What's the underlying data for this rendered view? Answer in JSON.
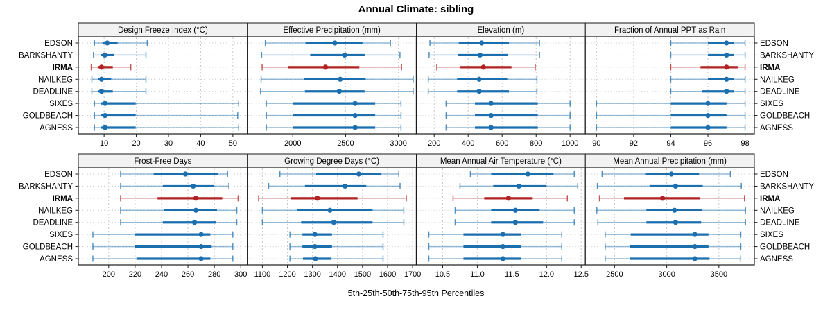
{
  "chart_data": {
    "type": "dotplot",
    "title": "Annual Climate: sibling",
    "caption": "5th-25th-50th-75th-95th Percentiles",
    "percentiles": [
      5,
      25,
      50,
      75,
      95
    ],
    "sites": [
      "EDSON",
      "BARKSHANTY",
      "IRMA",
      "NAILKEG",
      "DEADLINE",
      "SIXES",
      "GOLDBEACH",
      "AGNESS"
    ],
    "highlight_site": "IRMA",
    "colors": {
      "series": "#1B6FAF",
      "highlight": "#B22222",
      "grid": "#C8C8C8",
      "strip_fill": "#F2F2F2",
      "border": "#1A1A1A",
      "text": "#000000"
    },
    "legend_position": "none",
    "grid": "dashed vertical at ticks, dotted horizontal per row",
    "panels": [
      {
        "title": "Design Freeze Index (°C)",
        "xlim": [
          2,
          54.5
        ],
        "ticks": [
          10,
          20,
          30,
          40,
          50
        ],
        "tick_labels": [
          "10",
          "20",
          "30",
          "40",
          "50"
        ],
        "series": [
          {
            "site": "EDSON",
            "values": [
              7.0,
              9.5,
              11.0,
              14.2,
              23.4
            ]
          },
          {
            "site": "BARKSHANTY",
            "values": [
              6.7,
              9.0,
              10.2,
              13.0,
              23.0
            ]
          },
          {
            "site": "IRMA",
            "values": [
              6.0,
              8.0,
              9.2,
              12.7,
              18.3
            ]
          },
          {
            "site": "NAILKEG",
            "values": [
              6.2,
              8.2,
              9.2,
              12.2,
              23.0
            ]
          },
          {
            "site": "DEADLINE",
            "values": [
              6.2,
              8.2,
              9.2,
              12.7,
              23.0
            ]
          },
          {
            "site": "SIXES",
            "values": [
              7.0,
              9.0,
              10.3,
              19.8,
              51.8
            ]
          },
          {
            "site": "GOLDBEACH",
            "values": [
              7.0,
              9.0,
              10.3,
              19.8,
              51.5
            ]
          },
          {
            "site": "AGNESS",
            "values": [
              7.0,
              9.0,
              10.3,
              19.8,
              51.8
            ]
          }
        ]
      },
      {
        "title": "Effective Precipitation (mm)",
        "xlim": [
          1570,
          3170
        ],
        "ticks": [
          2000,
          2500,
          3000
        ],
        "tick_labels": [
          "2000",
          "2500",
          "3000"
        ],
        "series": [
          {
            "site": "EDSON",
            "values": [
              1740,
              2120,
              2400,
              2660,
              2925
            ]
          },
          {
            "site": "BARKSHANTY",
            "values": [
              1705,
              2165,
              2490,
              2685,
              3015
            ]
          },
          {
            "site": "IRMA",
            "values": [
              1710,
              1955,
              2310,
              2630,
              3030
            ]
          },
          {
            "site": "NAILKEG",
            "values": [
              1700,
              2110,
              2450,
              2690,
              3140
            ]
          },
          {
            "site": "DEADLINE",
            "values": [
              1695,
              2115,
              2440,
              2680,
              3140
            ]
          },
          {
            "site": "SIXES",
            "values": [
              1750,
              2000,
              2590,
              2780,
              3025
            ]
          },
          {
            "site": "GOLDBEACH",
            "values": [
              1750,
              2000,
              2590,
              2780,
              3025
            ]
          },
          {
            "site": "AGNESS",
            "values": [
              1750,
              2000,
              2590,
              2780,
              3025
            ]
          }
        ]
      },
      {
        "title": "Elevation (m)",
        "xlim": [
          95,
          1090
        ],
        "ticks": [
          200,
          400,
          600,
          800,
          1000
        ],
        "tick_labels": [
          "200",
          "400",
          "600",
          "800",
          "1000"
        ],
        "series": [
          {
            "site": "EDSON",
            "values": [
              175,
              345,
              480,
              640,
              820
            ]
          },
          {
            "site": "BARKSHANTY",
            "values": [
              170,
              340,
              470,
              635,
              820
            ]
          },
          {
            "site": "IRMA",
            "values": [
              215,
              350,
              490,
              655,
              795
            ]
          },
          {
            "site": "NAILKEG",
            "values": [
              165,
              335,
              465,
              630,
              805
            ]
          },
          {
            "site": "DEADLINE",
            "values": [
              165,
              335,
              465,
              640,
              805
            ]
          },
          {
            "site": "SIXES",
            "values": [
              270,
              440,
              535,
              810,
              1000
            ]
          },
          {
            "site": "GOLDBEACH",
            "values": [
              270,
              440,
              535,
              810,
              1000
            ]
          },
          {
            "site": "AGNESS",
            "values": [
              270,
              440,
              535,
              810,
              1000
            ]
          }
        ]
      },
      {
        "title": "Fraction of Annual PPT as Rain",
        "xlim": [
          89.4,
          98.5
        ],
        "ticks": [
          90,
          92,
          94,
          96,
          98
        ],
        "tick_labels": [
          "90",
          "92",
          "94",
          "96",
          "98"
        ],
        "series": [
          {
            "site": "EDSON",
            "values": [
              94,
              96.0,
              97,
              97.4,
              98
            ]
          },
          {
            "site": "BARKSHANTY",
            "values": [
              94,
              96.0,
              97,
              97.4,
              98
            ]
          },
          {
            "site": "IRMA",
            "values": [
              94,
              95.6,
              97,
              97.6,
              98
            ]
          },
          {
            "site": "NAILKEG",
            "values": [
              94,
              96.0,
              97,
              97.4,
              98
            ]
          },
          {
            "site": "DEADLINE",
            "values": [
              94,
              95.7,
              97,
              97.4,
              98
            ]
          },
          {
            "site": "SIXES",
            "values": [
              90,
              94.0,
              96,
              97.0,
              98
            ]
          },
          {
            "site": "GOLDBEACH",
            "values": [
              90,
              94.0,
              96,
              97.0,
              98
            ]
          },
          {
            "site": "AGNESS",
            "values": [
              90,
              94.0,
              96,
              97.0,
              98
            ]
          }
        ]
      },
      {
        "title": "Frost-Free Days",
        "xlim": [
          177,
          305
        ],
        "ticks": [
          200,
          220,
          240,
          260,
          280,
          300
        ],
        "tick_labels": [
          "200",
          "220",
          "240",
          "260",
          "280",
          "300"
        ],
        "series": [
          {
            "site": "EDSON",
            "values": [
              209,
              234,
              258,
              283,
              290
            ]
          },
          {
            "site": "BARKSHANTY",
            "values": [
              209,
              241,
              264,
              280,
              291
            ]
          },
          {
            "site": "IRMA",
            "values": [
              209,
              237,
              266,
              286,
              298
            ]
          },
          {
            "site": "NAILKEG",
            "values": [
              209,
              242,
              266,
              282,
              297
            ]
          },
          {
            "site": "DEADLINE",
            "values": [
              209,
              241,
              265,
              281,
              297
            ]
          },
          {
            "site": "SIXES",
            "values": [
              188,
              220,
              270,
              277,
              294
            ]
          },
          {
            "site": "GOLDBEACH",
            "values": [
              188,
              220,
              270,
              278,
              294
            ]
          },
          {
            "site": "AGNESS",
            "values": [
              188,
              221,
              270,
              277,
              294
            ]
          }
        ]
      },
      {
        "title": "Growing Degree Days (°C)",
        "xlim": [
          1040,
          1715
        ],
        "ticks": [
          1100,
          1200,
          1300,
          1400,
          1500,
          1600,
          1700
        ],
        "tick_labels": [
          "1100",
          "1200",
          "1300",
          "1400",
          "1500",
          "1600",
          "1700"
        ],
        "series": [
          {
            "site": "EDSON",
            "values": [
              1170,
              1315,
              1485,
              1573,
              1645
            ]
          },
          {
            "site": "BARKSHANTY",
            "values": [
              1125,
              1270,
              1430,
              1515,
              1650
            ]
          },
          {
            "site": "IRMA",
            "values": [
              1085,
              1215,
              1320,
              1480,
              1675
            ]
          },
          {
            "site": "NAILKEG",
            "values": [
              1100,
              1240,
              1370,
              1540,
              1665
            ]
          },
          {
            "site": "DEADLINE",
            "values": [
              1100,
              1255,
              1385,
              1540,
              1665
            ]
          },
          {
            "site": "SIXES",
            "values": [
              1210,
              1260,
              1310,
              1378,
              1582
            ]
          },
          {
            "site": "GOLDBEACH",
            "values": [
              1210,
              1260,
              1310,
              1378,
              1582
            ]
          },
          {
            "site": "AGNESS",
            "values": [
              1210,
              1262,
              1312,
              1376,
              1582
            ]
          }
        ]
      },
      {
        "title": "Mean Annual Air Temperature (°C)",
        "xlim": [
          10.12,
          12.56
        ],
        "ticks": [
          10.5,
          11.0,
          11.5,
          12.0,
          12.5
        ],
        "tick_labels": [
          "10.5",
          "11.0",
          "11.5",
          "12.0",
          "12.5"
        ],
        "series": [
          {
            "site": "EDSON",
            "values": [
              10.9,
              11.2,
              11.73,
              12.1,
              12.4
            ]
          },
          {
            "site": "BARKSHANTY",
            "values": [
              10.75,
              11.23,
              11.6,
              12.0,
              12.45
            ]
          },
          {
            "site": "IRMA",
            "values": [
              10.65,
              11.1,
              11.45,
              11.8,
              12.3
            ]
          },
          {
            "site": "NAILKEG",
            "values": [
              10.68,
              11.2,
              11.55,
              11.9,
              12.4
            ]
          },
          {
            "site": "DEADLINE",
            "values": [
              10.68,
              11.2,
              11.55,
              11.95,
              12.4
            ]
          },
          {
            "site": "SIXES",
            "values": [
              10.3,
              10.8,
              11.37,
              11.63,
              12.22
            ]
          },
          {
            "site": "GOLDBEACH",
            "values": [
              10.3,
              10.8,
              11.37,
              11.63,
              12.22
            ]
          },
          {
            "site": "AGNESS",
            "values": [
              10.3,
              10.8,
              11.37,
              11.63,
              12.22
            ]
          }
        ]
      },
      {
        "title": "Mean Annual Precipitation (mm)",
        "xlim": [
          2220,
          3840
        ],
        "ticks": [
          2500,
          3000,
          3500
        ],
        "tick_labels": [
          "2500",
          "3000",
          "3500"
        ],
        "series": [
          {
            "site": "EDSON",
            "values": [
              2380,
              2800,
              3045,
              3310,
              3610
            ]
          },
          {
            "site": "BARKSHANTY",
            "values": [
              2335,
              2835,
              3085,
              3345,
              3715
            ]
          },
          {
            "site": "IRMA",
            "values": [
              2355,
              2590,
              2960,
              3320,
              3745
            ]
          },
          {
            "site": "NAILKEG",
            "values": [
              2330,
              2805,
              3075,
              3335,
              3755
            ]
          },
          {
            "site": "DEADLINE",
            "values": [
              2340,
              2805,
              3085,
              3330,
              3755
            ]
          },
          {
            "site": "SIXES",
            "values": [
              2410,
              2655,
              3270,
              3400,
              3710
            ]
          },
          {
            "site": "GOLDBEACH",
            "values": [
              2410,
              2650,
              3270,
              3400,
              3710
            ]
          },
          {
            "site": "AGNESS",
            "values": [
              2410,
              2650,
              3270,
              3410,
              3705
            ]
          }
        ]
      }
    ]
  }
}
